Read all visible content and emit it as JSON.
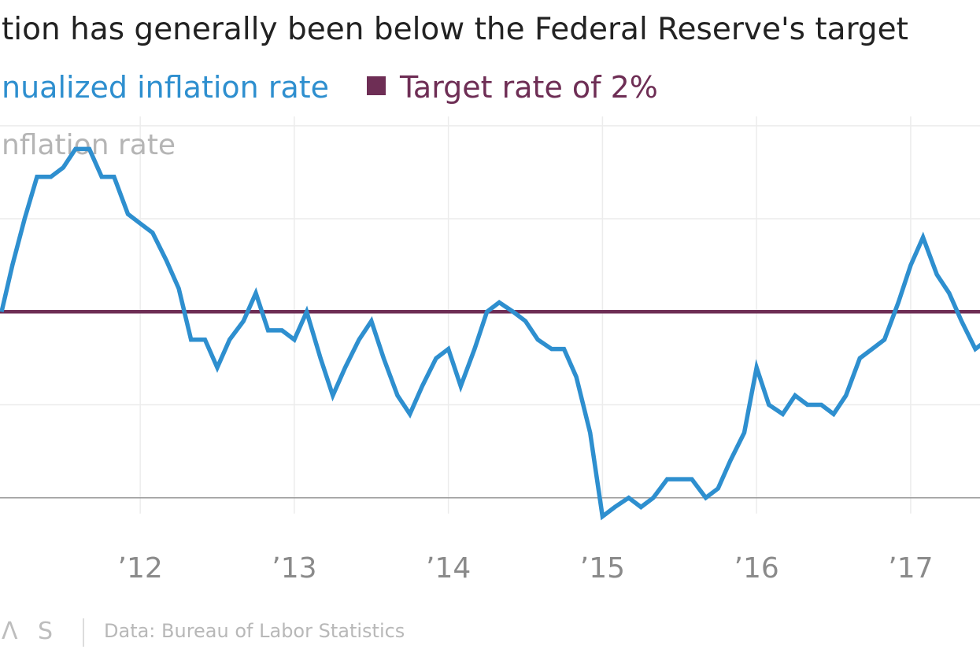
{
  "chart_data": {
    "type": "line",
    "title": "tion has generally been below the Federal Reserve's target",
    "legend": [
      {
        "name": "nualized inflation rate",
        "color": "#2e8fcf"
      },
      {
        "name": "Target rate of 2%",
        "color": "#6e2e55"
      }
    ],
    "ylabel": "nflation rate",
    "x_ticks": [
      {
        "label": "’12",
        "value": 2012
      },
      {
        "label": "’13",
        "value": 2013
      },
      {
        "label": "’14",
        "value": 2014
      },
      {
        "label": "’15",
        "value": 2015
      },
      {
        "label": "’16",
        "value": 2016
      },
      {
        "label": "’17",
        "value": 2017
      }
    ],
    "xlim": [
      2011.09,
      2017.45
    ],
    "ylim": [
      -0.4,
      4.1
    ],
    "y_gridlines": [
      1,
      2,
      3,
      4
    ],
    "baseline": 0,
    "target_rate": 2.0,
    "series": [
      {
        "name": "Annualized inflation rate",
        "color": "#2e8fcf",
        "x": [
          2011.1,
          2011.17,
          2011.25,
          2011.33,
          2011.42,
          2011.5,
          2011.58,
          2011.67,
          2011.75,
          2011.83,
          2011.92,
          2012.0,
          2012.08,
          2012.17,
          2012.25,
          2012.33,
          2012.42,
          2012.5,
          2012.58,
          2012.67,
          2012.75,
          2012.83,
          2012.92,
          2013.0,
          2013.08,
          2013.17,
          2013.25,
          2013.33,
          2013.42,
          2013.5,
          2013.58,
          2013.67,
          2013.75,
          2013.83,
          2013.92,
          2014.0,
          2014.08,
          2014.17,
          2014.25,
          2014.33,
          2014.42,
          2014.5,
          2014.58,
          2014.67,
          2014.75,
          2014.83,
          2014.92,
          2015.0,
          2015.08,
          2015.17,
          2015.25,
          2015.33,
          2015.42,
          2015.5,
          2015.58,
          2015.67,
          2015.75,
          2015.83,
          2015.92,
          2016.0,
          2016.08,
          2016.17,
          2016.25,
          2016.33,
          2016.42,
          2016.5,
          2016.58,
          2016.67,
          2016.75,
          2016.83,
          2016.92,
          2017.0,
          2017.08,
          2017.17,
          2017.25,
          2017.33,
          2017.42,
          2017.5
        ],
        "y": [
          2.0,
          2.5,
          3.0,
          3.45,
          3.45,
          3.55,
          3.75,
          3.75,
          3.45,
          3.45,
          3.05,
          2.95,
          2.85,
          2.55,
          2.25,
          1.7,
          1.7,
          1.4,
          1.7,
          1.9,
          2.2,
          1.8,
          1.8,
          1.7,
          2.0,
          1.5,
          1.1,
          1.4,
          1.7,
          1.9,
          1.5,
          1.1,
          0.9,
          1.2,
          1.5,
          1.6,
          1.2,
          1.6,
          2.0,
          2.1,
          2.0,
          1.9,
          1.7,
          1.6,
          1.6,
          1.3,
          0.7,
          -0.2,
          -0.1,
          0.0,
          -0.1,
          0.0,
          0.2,
          0.2,
          0.2,
          0.0,
          0.1,
          0.4,
          0.7,
          1.4,
          1.0,
          0.9,
          1.1,
          1.0,
          1.0,
          0.9,
          1.1,
          1.5,
          1.6,
          1.7,
          2.1,
          2.5,
          2.8,
          2.4,
          2.2,
          1.9,
          1.6,
          1.7
        ]
      }
    ]
  },
  "footer": {
    "logo": "Λ S",
    "source": "Data: Bureau of Labor Statistics"
  }
}
